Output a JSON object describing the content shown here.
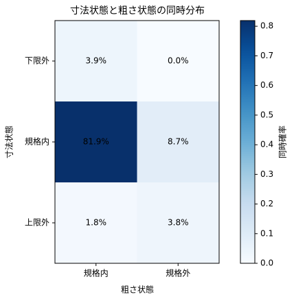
{
  "chart_data": {
    "type": "heatmap",
    "title": "寸法状態と粗さ状態の同時分布",
    "x_label": "粗さ状態",
    "y_label": "寸法状態",
    "x_categories": [
      "規格内",
      "規格外"
    ],
    "y_categories": [
      "下限外",
      "規格内",
      "上限外"
    ],
    "values": [
      [
        0.039,
        0.0
      ],
      [
        0.819,
        0.087
      ],
      [
        0.018,
        0.038
      ]
    ],
    "value_labels": [
      [
        "3.9%",
        "0.0%"
      ],
      [
        "81.9%",
        "8.7%"
      ],
      [
        "1.8%",
        "3.8%"
      ]
    ],
    "colormap": "Blues",
    "colorbar_label": "同時確率",
    "clim": [
      0,
      0.819
    ],
    "cticks": [
      {
        "value": 0,
        "label": "0.0"
      },
      {
        "value": 0.1,
        "label": "0.1"
      },
      {
        "value": 0.2,
        "label": "0.2"
      },
      {
        "value": 0.3,
        "label": "0.3"
      },
      {
        "value": 0.4,
        "label": "0.4"
      },
      {
        "value": 0.5,
        "label": "0.5"
      },
      {
        "value": 0.6,
        "label": "0.6"
      },
      {
        "value": 0.7,
        "label": "0.7"
      },
      {
        "value": 0.8,
        "label": "0.8"
      }
    ]
  }
}
